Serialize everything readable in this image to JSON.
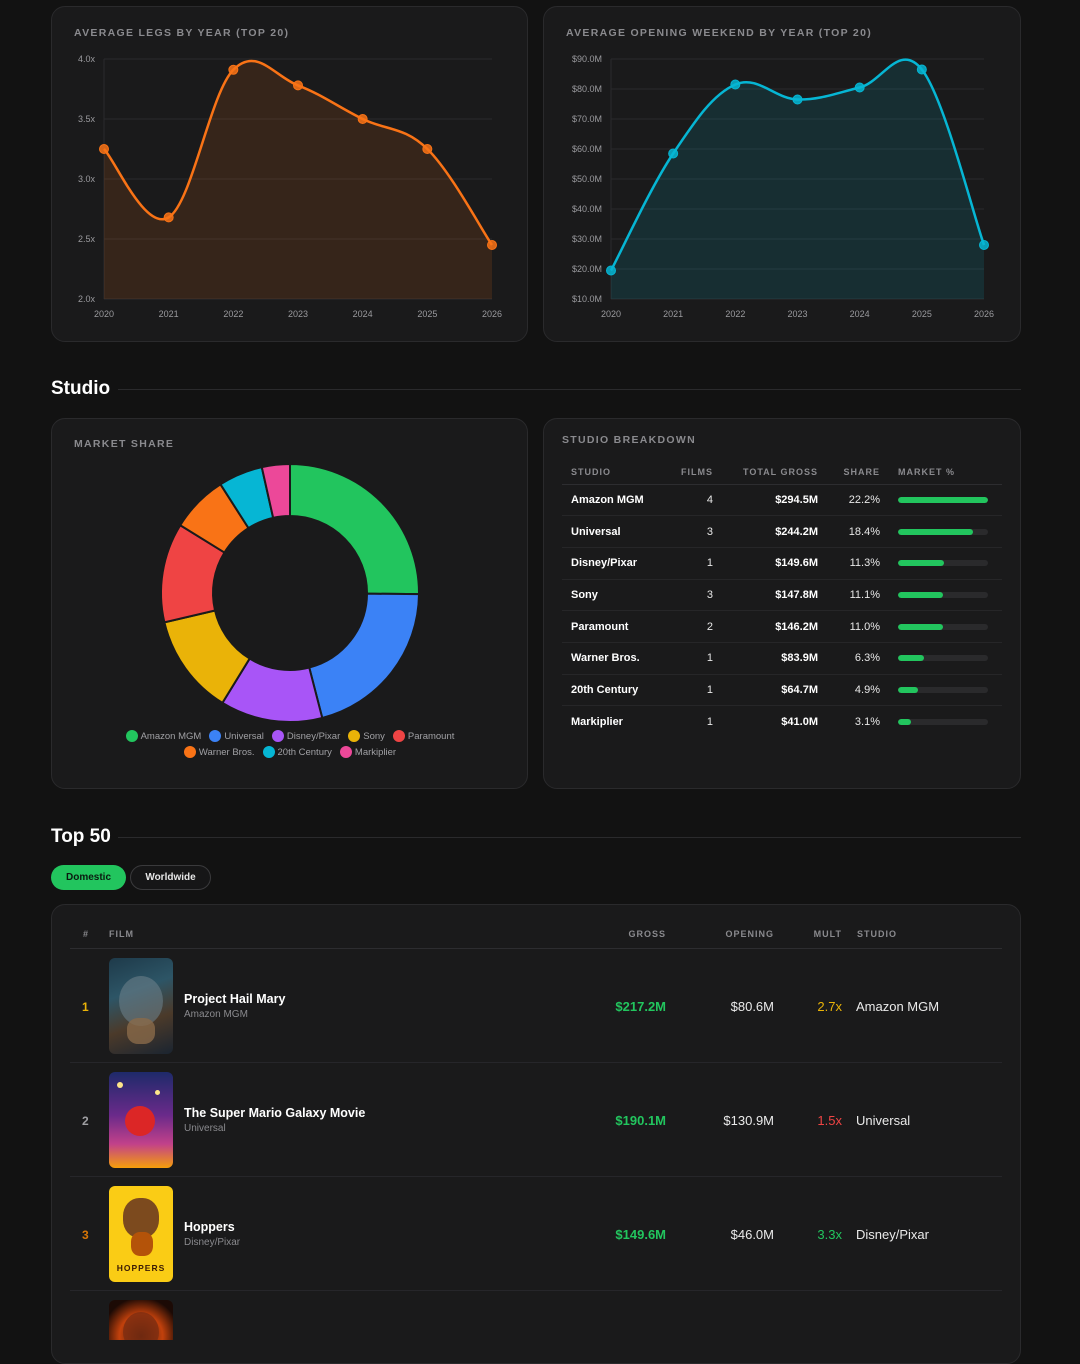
{
  "legs_chart": {
    "title": "AVERAGE LEGS BY YEAR (TOP 20)",
    "chart_data": {
      "type": "area",
      "x": [
        "2020",
        "2021",
        "2022",
        "2023",
        "2024",
        "2025",
        "2026"
      ],
      "values": [
        3.25,
        2.68,
        3.91,
        3.78,
        3.5,
        3.25,
        2.45
      ],
      "ylim": [
        2.0,
        4.0
      ],
      "yticks": [
        "4.0x",
        "3.5x",
        "3.0x",
        "2.5x",
        "2.0x"
      ],
      "color": "#f97316"
    }
  },
  "opening_chart": {
    "title": "AVERAGE OPENING WEEKEND BY YEAR (TOP 20)",
    "chart_data": {
      "type": "area",
      "x": [
        "2020",
        "2021",
        "2022",
        "2023",
        "2024",
        "2025",
        "2026"
      ],
      "values": [
        19.5,
        58.5,
        81.5,
        76.5,
        80.5,
        86.5,
        28.0
      ],
      "ylim": [
        10,
        90
      ],
      "yticks": [
        "$90.0M",
        "$80.0M",
        "$70.0M",
        "$60.0M",
        "$50.0M",
        "$40.0M",
        "$30.0M",
        "$20.0M",
        "$10.0M"
      ],
      "color": "#06b6d4"
    }
  },
  "studio_section": {
    "title": "Studio"
  },
  "market_share": {
    "title": "MARKET SHARE",
    "chart_data": {
      "type": "pie",
      "labels": [
        "Amazon MGM",
        "Universal",
        "Disney/Pixar",
        "Sony",
        "Paramount",
        "Warner Bros.",
        "20th Century",
        "Markiplier"
      ],
      "values": [
        22.2,
        18.4,
        11.3,
        11.1,
        11.0,
        6.3,
        4.9,
        3.1
      ],
      "colors": [
        "#22c55e",
        "#3b82f6",
        "#a855f7",
        "#eab308",
        "#ef4444",
        "#f97316",
        "#06b6d4",
        "#ec4899"
      ]
    }
  },
  "breakdown": {
    "title": "STUDIO BREAKDOWN",
    "headers": {
      "studio": "STUDIO",
      "films": "FILMS",
      "gross": "TOTAL GROSS",
      "share": "SHARE",
      "market": "MARKET %"
    },
    "rows": [
      {
        "studio": "Amazon MGM",
        "films": "4",
        "gross": "$294.5M",
        "share": "22.2%",
        "pct": 1.0
      },
      {
        "studio": "Universal",
        "films": "3",
        "gross": "$244.2M",
        "share": "18.4%",
        "pct": 0.83
      },
      {
        "studio": "Disney/Pixar",
        "films": "1",
        "gross": "$149.6M",
        "share": "11.3%",
        "pct": 0.51
      },
      {
        "studio": "Sony",
        "films": "3",
        "gross": "$147.8M",
        "share": "11.1%",
        "pct": 0.5
      },
      {
        "studio": "Paramount",
        "films": "2",
        "gross": "$146.2M",
        "share": "11.0%",
        "pct": 0.495
      },
      {
        "studio": "Warner Bros.",
        "films": "1",
        "gross": "$83.9M",
        "share": "6.3%",
        "pct": 0.285
      },
      {
        "studio": "20th Century",
        "films": "1",
        "gross": "$64.7M",
        "share": "4.9%",
        "pct": 0.22
      },
      {
        "studio": "Markiplier",
        "films": "1",
        "gross": "$41.0M",
        "share": "3.1%",
        "pct": 0.14
      }
    ]
  },
  "top50": {
    "title": "Top 50",
    "tabs": {
      "domestic": "Domestic",
      "worldwide": "Worldwide"
    },
    "headers": {
      "rank": "#",
      "film": "FILM",
      "gross": "GROSS",
      "opening": "OPENING",
      "mult": "MULT",
      "studio": "STUDIO"
    },
    "rows": [
      {
        "rank": "1",
        "title": "Project Hail Mary",
        "studio": "Amazon MGM",
        "gross": "$217.2M",
        "opening": "$80.6M",
        "mult": "2.7x",
        "rank_color": "#eab308",
        "mult_color": "#eab308"
      },
      {
        "rank": "2",
        "title": "The Super Mario Galaxy Movie",
        "studio": "Universal",
        "gross": "$190.1M",
        "opening": "$130.9M",
        "mult": "1.5x",
        "rank_color": "#a0a0a4",
        "mult_color": "#ef4444"
      },
      {
        "rank": "3",
        "title": "Hoppers",
        "studio": "Disney/Pixar",
        "gross": "$149.6M",
        "opening": "$46.0M",
        "mult": "3.3x",
        "rank_color": "#d97706",
        "mult_color": "#22c55e"
      }
    ],
    "poster_labels": {
      "hoppers": "HOPPERS"
    }
  }
}
